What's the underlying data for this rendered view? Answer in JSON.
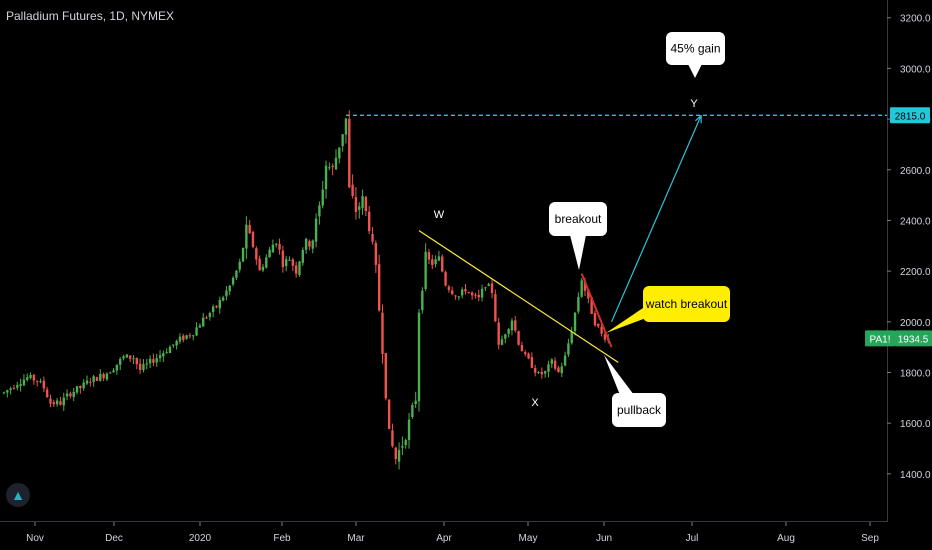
{
  "header": {
    "title": "Palladium Futures, 1D, NYMEX"
  },
  "logo": {
    "icon": "tradingview-logo-icon"
  },
  "colors": {
    "background": "#000000",
    "up": "#26a69a",
    "up_candle": "#4caf50",
    "down": "#ef5350",
    "grid_text": "#d1d4dc",
    "target_line": "#26c6da",
    "trendline": "#ffeb3b",
    "red_line": "#d32f2f",
    "ticker_badge": "#26a65b"
  },
  "chart_data": {
    "type": "candlestick",
    "x": [
      "Nov",
      "Dec",
      "2020",
      "Feb",
      "Mar",
      "Apr",
      "May",
      "Jun",
      "Jul",
      "Aug",
      "Sep"
    ],
    "y_ticks": [
      1400,
      1600,
      1800,
      2000,
      2200,
      2400,
      2600,
      2800,
      3000,
      3200
    ],
    "y_tick_labels": [
      "1400.0",
      "1600.0",
      "1800.0",
      "2000.0",
      "2200.0",
      "2400.0",
      "2600.0",
      "2800.0",
      "3000.0",
      "3200.0"
    ],
    "ylim": [
      1210,
      3270
    ],
    "price_path": [
      [
        0,
        1720
      ],
      [
        4,
        1760
      ],
      [
        7,
        1780
      ],
      [
        10,
        1770
      ],
      [
        12,
        1740
      ],
      [
        14,
        1680
      ],
      [
        17,
        1680
      ],
      [
        20,
        1720
      ],
      [
        23,
        1740
      ],
      [
        26,
        1770
      ],
      [
        30,
        1790
      ],
      [
        33,
        1820
      ],
      [
        36,
        1860
      ],
      [
        39,
        1860
      ],
      [
        41,
        1810
      ],
      [
        44,
        1840
      ],
      [
        47,
        1870
      ],
      [
        50,
        1900
      ],
      [
        53,
        1930
      ],
      [
        57,
        1960
      ],
      [
        60,
        2010
      ],
      [
        64,
        2060
      ],
      [
        68,
        2140
      ],
      [
        71,
        2230
      ],
      [
        73,
        2360
      ],
      [
        75,
        2300
      ],
      [
        77,
        2200
      ],
      [
        80,
        2280
      ],
      [
        82,
        2330
      ],
      [
        84,
        2230
      ],
      [
        86,
        2250
      ],
      [
        88,
        2200
      ],
      [
        90,
        2290
      ],
      [
        93,
        2330
      ],
      [
        95,
        2450
      ],
      [
        97,
        2620
      ],
      [
        99,
        2600
      ],
      [
        101,
        2700
      ],
      [
        103,
        2800
      ],
      [
        104,
        2520
      ],
      [
        106,
        2440
      ],
      [
        108,
        2480
      ],
      [
        110,
        2380
      ],
      [
        112,
        2200
      ],
      [
        114,
        1900
      ],
      [
        116,
        1550
      ],
      [
        118,
        1460
      ],
      [
        120,
        1520
      ],
      [
        122,
        1600
      ],
      [
        124,
        1700
      ],
      [
        125,
        2050
      ],
      [
        127,
        2250
      ],
      [
        129,
        2230
      ],
      [
        131,
        2250
      ],
      [
        133,
        2150
      ],
      [
        135,
        2120
      ],
      [
        137,
        2100
      ],
      [
        139,
        2130
      ],
      [
        141,
        2100
      ],
      [
        143,
        2090
      ],
      [
        145,
        2150
      ],
      [
        147,
        2120
      ],
      [
        149,
        1900
      ],
      [
        151,
        1960
      ],
      [
        153,
        2010
      ],
      [
        155,
        1920
      ],
      [
        157,
        1860
      ],
      [
        159,
        1830
      ],
      [
        161,
        1790
      ],
      [
        163,
        1800
      ],
      [
        165,
        1840
      ],
      [
        167,
        1800
      ],
      [
        169,
        1860
      ],
      [
        171,
        1970
      ],
      [
        173,
        2100
      ],
      [
        174,
        2170
      ],
      [
        176,
        2080
      ],
      [
        178,
        2000
      ],
      [
        180,
        1950
      ],
      [
        182,
        1935
      ]
    ],
    "current_price": "1934.5",
    "ticker": "PA1!",
    "target_price": "2815.0",
    "annotations": {
      "target_label": "45% gain",
      "wave_w": "W",
      "wave_x": "X",
      "wave_y": "Y",
      "breakout": "breakout",
      "watch_breakout": "watch breakout",
      "pullback": "pullback"
    },
    "trendline": {
      "from": [
        125,
        2360
      ],
      "to": [
        185,
        1840
      ]
    },
    "red_segment": {
      "from": [
        174,
        2190
      ],
      "to": [
        183,
        1900
      ]
    },
    "projection_arrow": {
      "from": [
        183,
        2000
      ],
      "to": [
        210,
        2815
      ]
    },
    "grid": false,
    "legend": "none"
  }
}
